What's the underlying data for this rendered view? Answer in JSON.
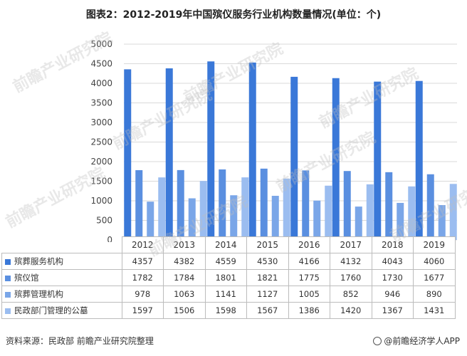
{
  "title": "图表2：2012-2019年中国殡仪服务行业机构数量情况(单位：个)",
  "source": "资料来源：民政部 前瞻产业研究院整理",
  "brand": "@前瞻经济学人APP",
  "watermark": "前瞻产业研究院",
  "chart_data": {
    "type": "bar",
    "categories": [
      "2012",
      "2013",
      "2014",
      "2015",
      "2016",
      "2017",
      "2018",
      "2019"
    ],
    "ylim": [
      0,
      5000
    ],
    "yticks": [
      "0",
      "500",
      "1000",
      "1500",
      "2000",
      "2500",
      "3000",
      "3500",
      "4000",
      "4500",
      "5000"
    ],
    "grid": true,
    "legend": "table-left",
    "series": [
      {
        "name": "殡葬服务机构",
        "color": "#3a78d8",
        "values": [
          4357,
          4382,
          4559,
          4530,
          4166,
          4132,
          4043,
          4060
        ]
      },
      {
        "name": "殡仪馆",
        "color": "#5a8fe0",
        "values": [
          1782,
          1784,
          1801,
          1821,
          1775,
          1760,
          1730,
          1677
        ]
      },
      {
        "name": "殡葬管理机构",
        "color": "#7aa6e8",
        "values": [
          978,
          1063,
          1141,
          1127,
          1005,
          852,
          946,
          890
        ]
      },
      {
        "name": "民政部门管理的公墓",
        "color": "#9bbdf0",
        "values": [
          1597,
          1506,
          1598,
          1567,
          1386,
          1420,
          1367,
          1431
        ]
      }
    ]
  }
}
